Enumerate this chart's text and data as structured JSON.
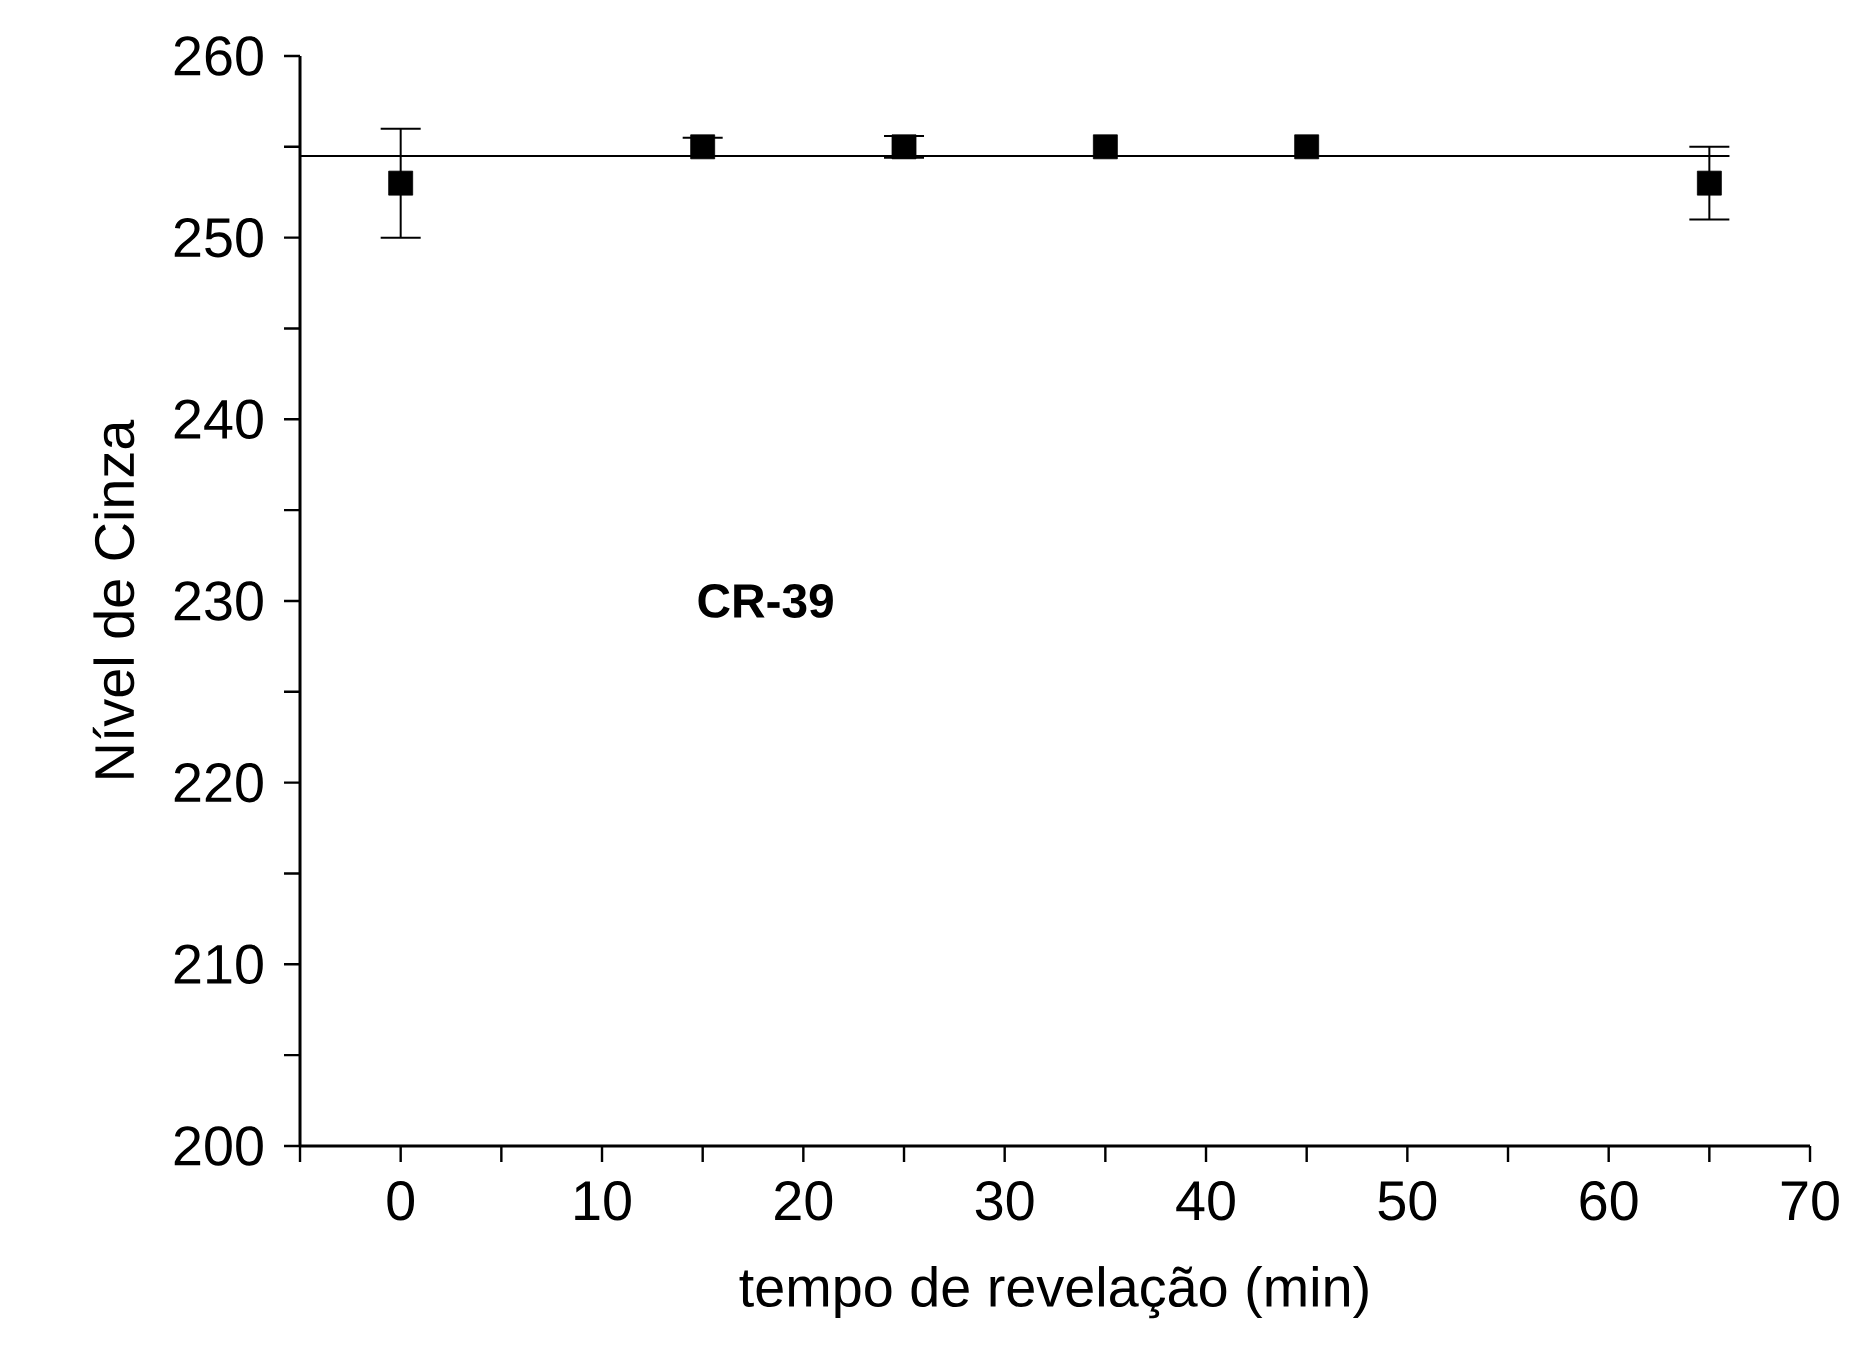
{
  "chart_data": {
    "type": "scatter",
    "xlabel": "tempo de revelação (min)",
    "ylabel": "Nível de Cinza",
    "annotations": [
      "CR-39"
    ],
    "xlim": [
      -5,
      70
    ],
    "ylim": [
      200,
      260
    ],
    "xticks": [
      {
        "value": -5,
        "label": null
      },
      0,
      {
        "value": 5,
        "label": null
      },
      10,
      {
        "value": 15,
        "label": null
      },
      20,
      {
        "value": 25,
        "label": null
      },
      30,
      {
        "value": 35,
        "label": null
      },
      40,
      {
        "value": 45,
        "label": null
      },
      50,
      {
        "value": 55,
        "label": null
      },
      60,
      {
        "value": 65,
        "label": null
      },
      70
    ],
    "yticks": [
      200,
      {
        "value": 205,
        "label": null
      },
      210,
      {
        "value": 215,
        "label": null
      },
      220,
      {
        "value": 225,
        "label": null
      },
      230,
      {
        "value": 235,
        "label": null
      },
      240,
      {
        "value": 245,
        "label": null
      },
      250,
      {
        "value": 255,
        "label": null
      },
      260
    ],
    "series": [
      {
        "marker": "square",
        "color": "#000000",
        "x": [
          0,
          15,
          25,
          35,
          45,
          65
        ],
        "values": [
          253,
          255,
          255,
          255,
          255,
          253
        ],
        "errors": [
          3,
          0.5,
          0.6,
          null,
          null,
          2
        ]
      },
      {
        "type": "line",
        "marker": "none",
        "line_style": "solid",
        "color": "#000000",
        "x": [
          -5,
          66
        ],
        "values": [
          254.5,
          254.5
        ]
      }
    ]
  }
}
